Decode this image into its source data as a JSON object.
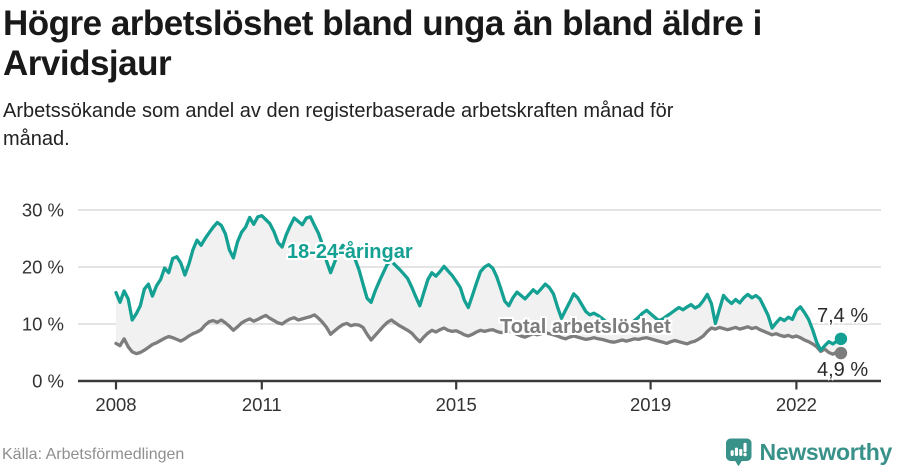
{
  "header": {
    "title": "Högre arbetslöshet bland unga än bland äldre i Arvidsjaur",
    "subtitle": "Arbetssökande som andel av den registerbaserade arbetskraften månad för månad."
  },
  "chart_data": {
    "type": "line",
    "title": "Högre arbetslöshet bland unga än bland äldre i Arvidsjaur",
    "unit": "%",
    "x_range": [
      "2008-01",
      "2022-12"
    ],
    "points_per_year": 12,
    "x_tick_years": [
      2008,
      2011,
      2015,
      2019,
      2022
    ],
    "x_tick_labels": [
      "2008",
      "2011",
      "2015",
      "2019",
      "2022"
    ],
    "y_ticks": [
      0,
      10,
      20,
      30
    ],
    "y_tick_labels": [
      "0 %",
      "10 %",
      "20 %",
      "30 %"
    ],
    "ylim": [
      0,
      30
    ],
    "grid": "horizontal",
    "legend_position": "inline-labels",
    "fill_between_color": "#f1f1f1",
    "axis_color": "#3a3a3a",
    "grid_color": "#dcdcdc",
    "tick_label_color": "#333333",
    "series": [
      {
        "name": "18-24-åringar",
        "color": "#14a092",
        "values": [
          15.5,
          13.8,
          15.8,
          14.4,
          10.7,
          11.8,
          13.2,
          16.1,
          17.0,
          14.9,
          16.7,
          17.8,
          19.8,
          19.0,
          21.5,
          21.8,
          20.7,
          18.6,
          20.5,
          23.0,
          24.7,
          23.8,
          25.0,
          26.0,
          27.0,
          27.8,
          27.3,
          25.8,
          23.0,
          21.6,
          24.4,
          26.1,
          27.0,
          28.7,
          27.5,
          28.8,
          29.0,
          28.3,
          27.6,
          26.2,
          24.3,
          23.5,
          25.6,
          27.2,
          28.6,
          28.0,
          27.4,
          28.6,
          28.8,
          27.3,
          25.9,
          23.9,
          21.0,
          19.0,
          20.9,
          22.6,
          23.8,
          23.0,
          22.2,
          21.4,
          19.5,
          17.0,
          14.5,
          13.8,
          15.8,
          17.5,
          19.0,
          20.5,
          21.0,
          20.3,
          19.6,
          18.8,
          18.0,
          16.5,
          14.8,
          13.2,
          15.5,
          17.8,
          19.0,
          18.4,
          19.2,
          20.1,
          19.3,
          18.5,
          17.5,
          16.4,
          14.2,
          12.9,
          15.0,
          17.2,
          19.2,
          20.0,
          20.4,
          19.8,
          18.3,
          16.2,
          14.0,
          13.2,
          14.6,
          15.6,
          15.0,
          14.4,
          15.2,
          16.0,
          15.4,
          16.2,
          17.0,
          16.4,
          15.3,
          13.0,
          11.0,
          12.4,
          13.8,
          15.3,
          14.6,
          13.4,
          12.2,
          11.6,
          11.9,
          11.5,
          11.0,
          10.4,
          9.8,
          9.5,
          9.9,
          10.3,
          9.7,
          10.1,
          10.6,
          11.2,
          11.9,
          12.4,
          11.8,
          11.2,
          10.6,
          10.9,
          11.4,
          11.9,
          12.4,
          12.9,
          12.5,
          13.0,
          13.4,
          12.8,
          13.2,
          14.1,
          15.2,
          13.6,
          10.1,
          12.6,
          15.0,
          14.2,
          13.6,
          14.3,
          13.7,
          14.6,
          15.2,
          14.6,
          15.0,
          14.4,
          13.0,
          11.5,
          9.3,
          10.2,
          11.0,
          10.6,
          11.2,
          10.8,
          12.4,
          13.0,
          12.0,
          10.8,
          9.0,
          6.8,
          5.4,
          6.2,
          6.9,
          6.5,
          7.0,
          7.4
        ],
        "last_value_label": "7,4 %"
      },
      {
        "name": "Total arbetslöshet",
        "color": "#7d7d7d",
        "values": [
          6.6,
          6.2,
          7.4,
          6.0,
          5.1,
          4.8,
          5.0,
          5.4,
          5.9,
          6.4,
          6.7,
          7.1,
          7.5,
          7.8,
          7.6,
          7.3,
          7.0,
          7.4,
          7.9,
          8.3,
          8.6,
          9.0,
          9.8,
          10.4,
          10.6,
          10.3,
          10.7,
          10.2,
          9.6,
          8.9,
          9.5,
          10.2,
          10.6,
          10.9,
          10.5,
          10.8,
          11.2,
          11.5,
          11.0,
          10.6,
          10.2,
          10.0,
          10.5,
          10.9,
          11.1,
          10.7,
          10.9,
          11.1,
          11.3,
          11.6,
          11.0,
          10.3,
          9.4,
          8.2,
          8.8,
          9.4,
          9.9,
          10.1,
          9.7,
          9.9,
          9.8,
          9.4,
          8.2,
          7.2,
          8.0,
          8.8,
          9.6,
          10.3,
          10.7,
          10.2,
          9.7,
          9.3,
          8.9,
          8.4,
          7.6,
          6.9,
          7.7,
          8.4,
          8.9,
          8.6,
          9.0,
          9.3,
          8.9,
          8.7,
          8.8,
          8.5,
          8.1,
          7.9,
          8.2,
          8.6,
          8.9,
          8.7,
          8.9,
          9.0,
          8.7,
          8.5,
          8.6,
          8.8,
          8.5,
          8.2,
          7.9,
          7.7,
          8.0,
          8.3,
          8.1,
          8.3,
          8.5,
          8.3,
          8.1,
          7.9,
          7.6,
          7.4,
          7.7,
          7.9,
          7.7,
          7.5,
          7.3,
          7.4,
          7.6,
          7.4,
          7.3,
          7.1,
          6.9,
          6.8,
          7.0,
          7.2,
          7.0,
          7.2,
          7.4,
          7.3,
          7.5,
          7.6,
          7.4,
          7.2,
          7.0,
          6.8,
          6.6,
          6.9,
          7.1,
          6.9,
          6.7,
          6.5,
          6.8,
          7.0,
          7.4,
          7.9,
          8.7,
          9.3,
          9.1,
          9.4,
          9.2,
          9.0,
          9.2,
          9.4,
          9.1,
          9.3,
          9.5,
          9.2,
          9.4,
          9.0,
          8.7,
          8.4,
          8.1,
          8.3,
          8.0,
          7.8,
          8.0,
          7.7,
          7.9,
          7.6,
          7.2,
          6.9,
          6.5,
          6.0,
          5.2,
          5.6,
          5.0,
          4.7,
          5.1,
          4.9
        ],
        "last_value_label": "4,9 %"
      }
    ]
  },
  "footer": {
    "source": "Källa: Arbetsförmedlingen",
    "logo_text": "Newsworthy"
  },
  "colors": {
    "accent_teal": "#14a092",
    "logo_teal": "#39928a",
    "line_gray": "#7d7d7d"
  }
}
